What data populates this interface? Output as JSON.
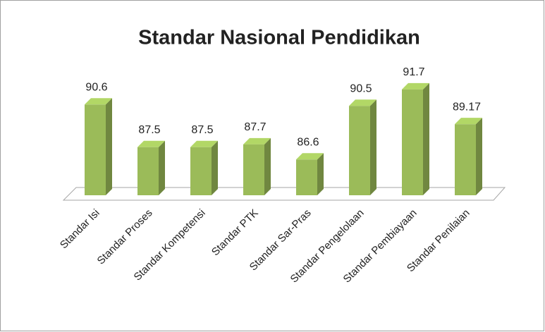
{
  "chart_data": {
    "type": "bar3d",
    "title": "Standar Nasional Pendidikan",
    "categories": [
      "Standar Isi",
      "Standar Proses",
      "Standar Kompetensi",
      "Standar PTK",
      "Standar Sar-Pras",
      "Standar Pengelolaan",
      "Standar Pembiayaan",
      "Standar Penilaian"
    ],
    "values": [
      90.6,
      87.5,
      87.5,
      87.7,
      86.6,
      90.5,
      91.7,
      89.17
    ],
    "color": "#9bbb59",
    "ylim": [
      84,
      92
    ]
  }
}
